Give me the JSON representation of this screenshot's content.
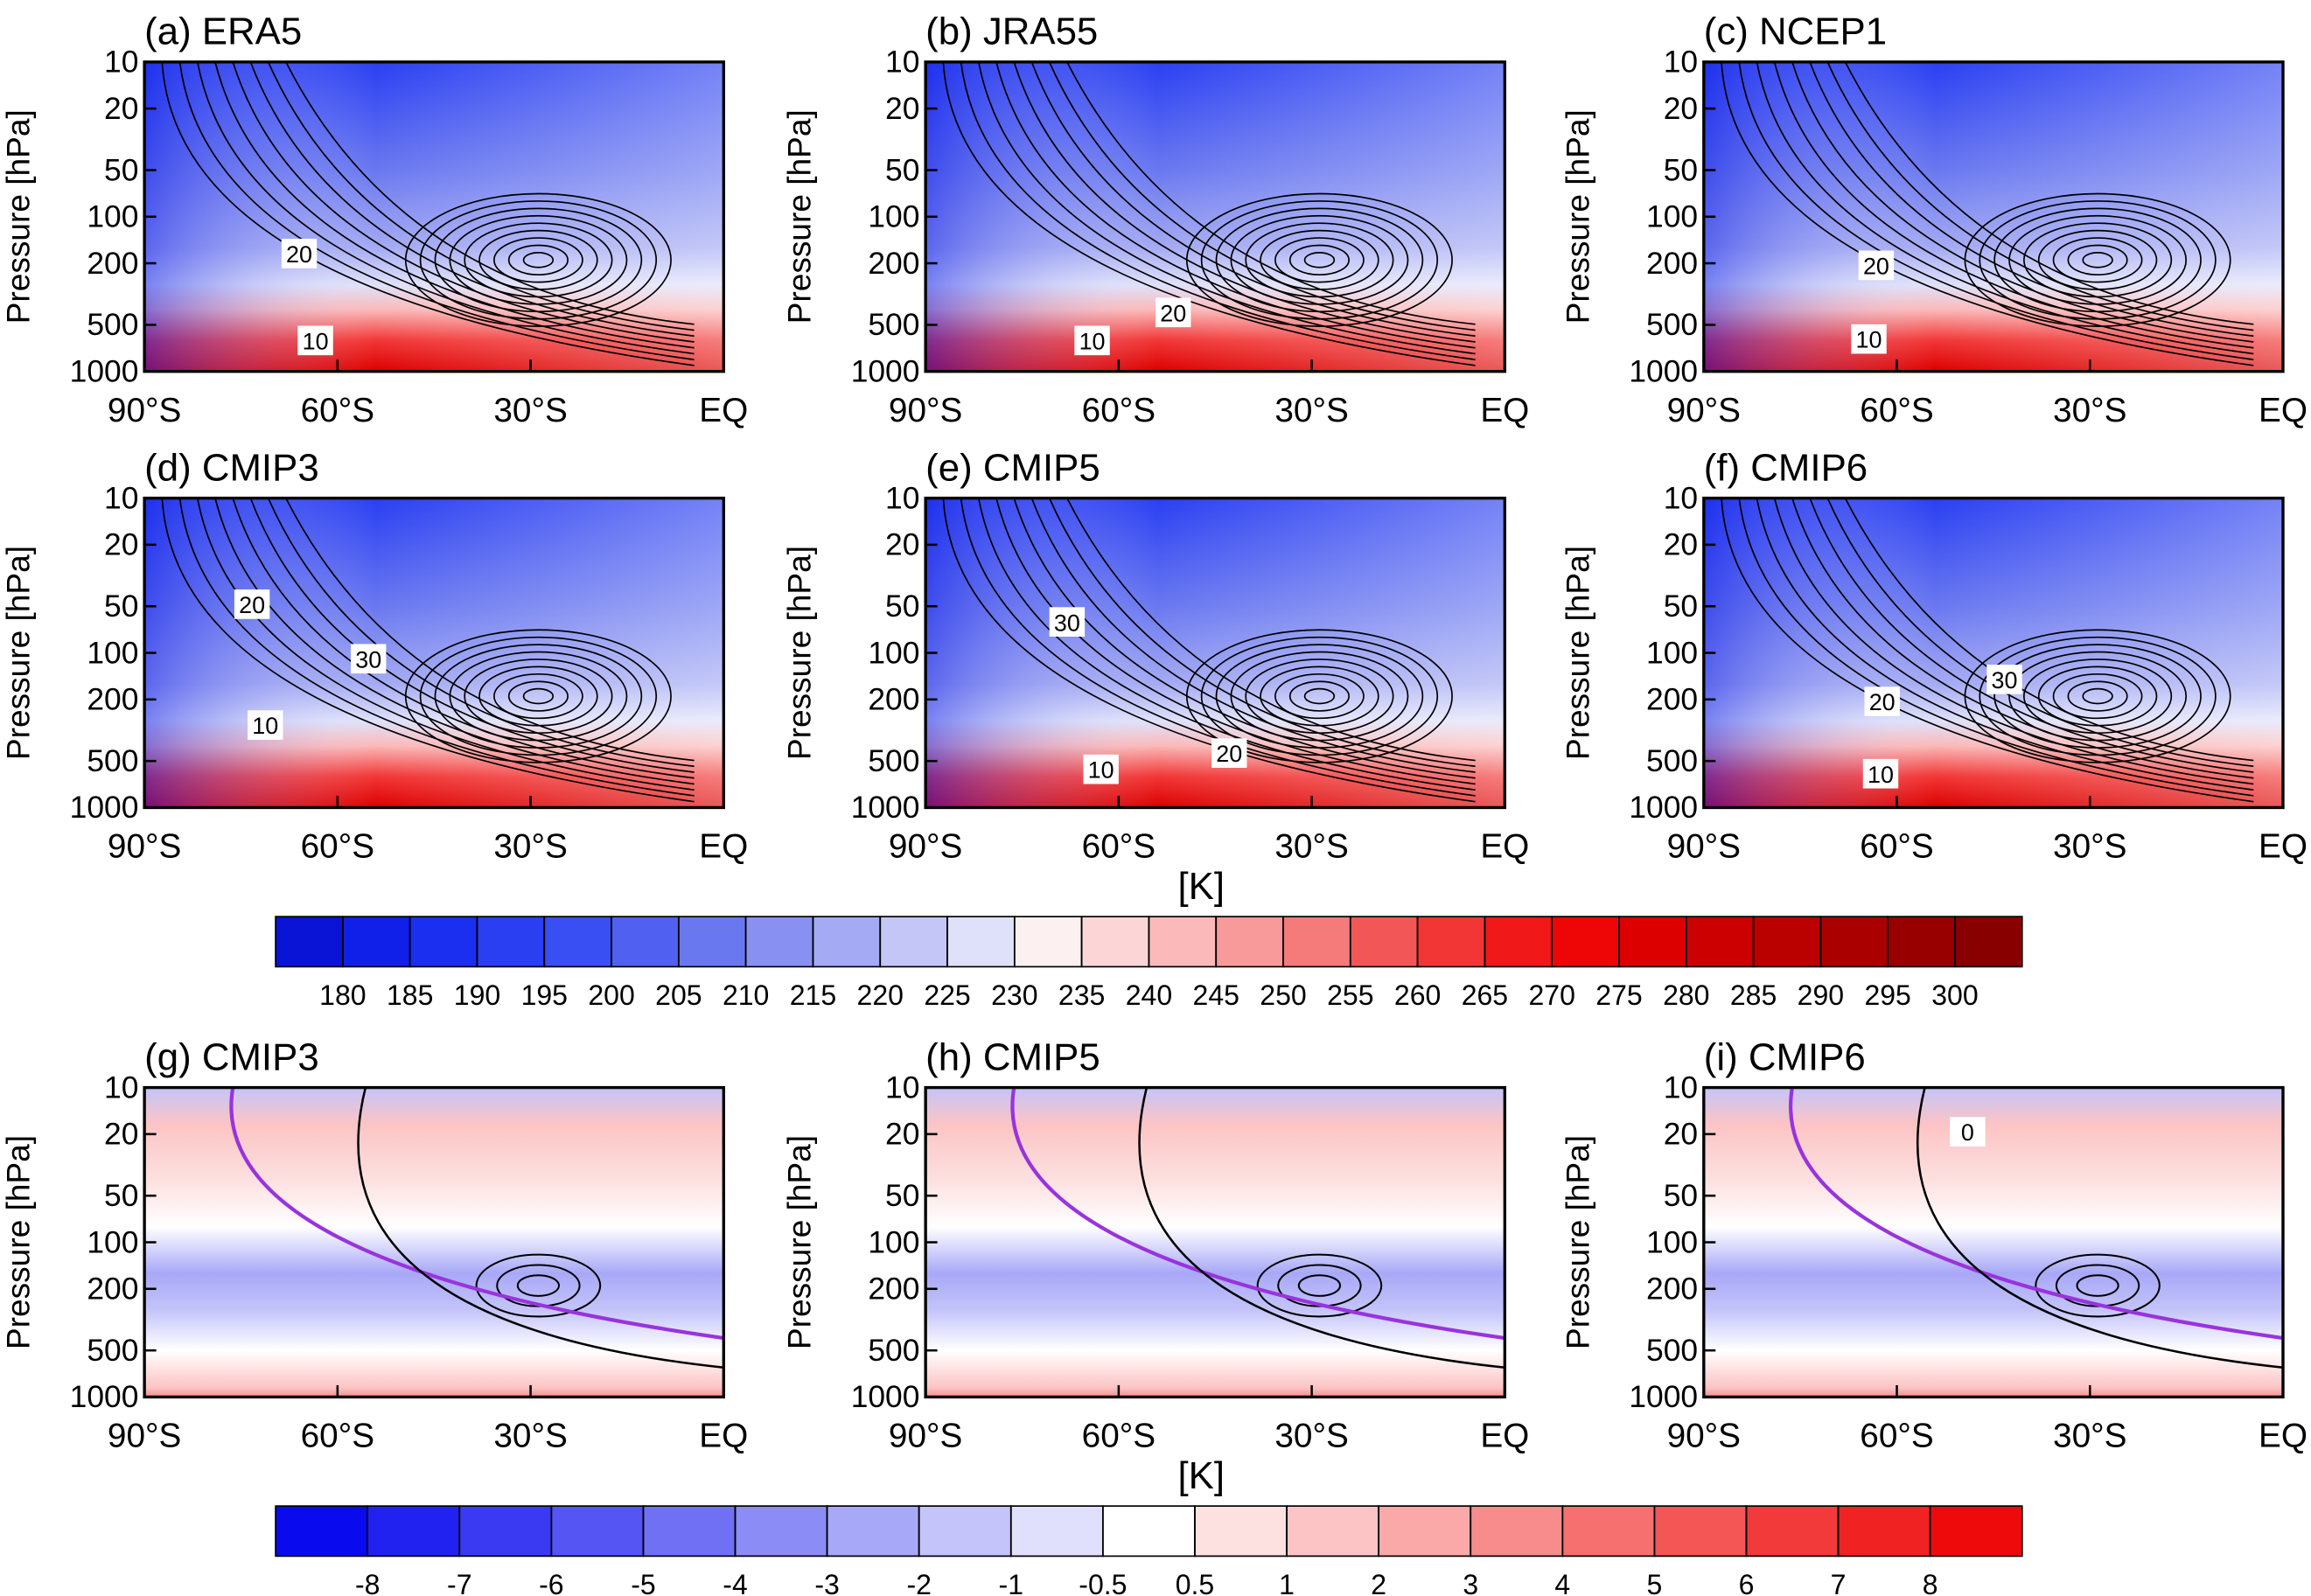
{
  "chart_data": [
    {
      "type": "contour",
      "title": "(a) ERA5",
      "ylabel": "Pressure [hPa]",
      "log_y": true,
      "xlim": [
        -90,
        0
      ],
      "ylim": [
        1000,
        10
      ],
      "xticks": [
        {
          "value": -90,
          "label": "90°S"
        },
        {
          "value": -60,
          "label": "60°S"
        },
        {
          "value": -30,
          "label": "30°S"
        },
        {
          "value": 0,
          "label": "EQ"
        }
      ],
      "yticks": [
        10,
        20,
        50,
        100,
        200,
        500,
        1000
      ],
      "contour_labels": [
        "20",
        "10"
      ]
    },
    {
      "type": "contour",
      "title": "(b) JRA55",
      "ylabel": "Pressure [hPa]",
      "log_y": true,
      "xlim": [
        -90,
        0
      ],
      "ylim": [
        1000,
        10
      ],
      "xticks": [
        {
          "value": -90,
          "label": "90°S"
        },
        {
          "value": -60,
          "label": "60°S"
        },
        {
          "value": -30,
          "label": "30°S"
        },
        {
          "value": 0,
          "label": "EQ"
        }
      ],
      "yticks": [
        10,
        20,
        50,
        100,
        200,
        500,
        1000
      ],
      "contour_labels": [
        "20",
        "10"
      ]
    },
    {
      "type": "contour",
      "title": "(c) NCEP1",
      "ylabel": "Pressure [hPa]",
      "log_y": true,
      "xlim": [
        -90,
        0
      ],
      "ylim": [
        1000,
        10
      ],
      "xticks": [
        {
          "value": -90,
          "label": "90°S"
        },
        {
          "value": -60,
          "label": "60°S"
        },
        {
          "value": -30,
          "label": "30°S"
        },
        {
          "value": 0,
          "label": "EQ"
        }
      ],
      "yticks": [
        10,
        20,
        50,
        100,
        200,
        500,
        1000
      ],
      "contour_labels": [
        "20",
        "10"
      ]
    },
    {
      "type": "contour",
      "title": "(d) CMIP3",
      "ylabel": "Pressure [hPa]",
      "log_y": true,
      "xlim": [
        -90,
        0
      ],
      "ylim": [
        1000,
        10
      ],
      "xticks": [
        {
          "value": -90,
          "label": "90°S"
        },
        {
          "value": -60,
          "label": "60°S"
        },
        {
          "value": -30,
          "label": "30°S"
        },
        {
          "value": 0,
          "label": "EQ"
        }
      ],
      "yticks": [
        10,
        20,
        50,
        100,
        200,
        500,
        1000
      ],
      "contour_labels": [
        "20",
        "30",
        "10"
      ]
    },
    {
      "type": "contour",
      "title": "(e) CMIP5",
      "ylabel": "Pressure [hPa]",
      "log_y": true,
      "xlim": [
        -90,
        0
      ],
      "ylim": [
        1000,
        10
      ],
      "xticks": [
        {
          "value": -90,
          "label": "90°S"
        },
        {
          "value": -60,
          "label": "60°S"
        },
        {
          "value": -30,
          "label": "30°S"
        },
        {
          "value": 0,
          "label": "EQ"
        }
      ],
      "yticks": [
        10,
        20,
        50,
        100,
        200,
        500,
        1000
      ],
      "contour_labels": [
        "30",
        "20",
        "10"
      ]
    },
    {
      "type": "contour",
      "title": "(f) CMIP6",
      "ylabel": "Pressure [hPa]",
      "log_y": true,
      "xlim": [
        -90,
        0
      ],
      "ylim": [
        1000,
        10
      ],
      "xticks": [
        {
          "value": -90,
          "label": "90°S"
        },
        {
          "value": -60,
          "label": "60°S"
        },
        {
          "value": -30,
          "label": "30°S"
        },
        {
          "value": 0,
          "label": "EQ"
        }
      ],
      "yticks": [
        10,
        20,
        50,
        100,
        200,
        500,
        1000
      ],
      "contour_labels": [
        "30",
        "20",
        "10"
      ]
    },
    {
      "type": "colorbar",
      "label": "[K]",
      "levels": [
        180,
        185,
        190,
        195,
        200,
        205,
        210,
        215,
        220,
        225,
        230,
        235,
        240,
        245,
        250,
        255,
        260,
        265,
        270,
        275,
        280,
        285,
        290,
        295,
        300
      ],
      "colors": [
        "#0a14d6",
        "#1020e8",
        "#1a2ff0",
        "#2a3ff2",
        "#3a4ff3",
        "#5060f0",
        "#6a78f0",
        "#8891f2",
        "#a4aaf3",
        "#c3c6f6",
        "#dfe1fa",
        "#fdf0f0",
        "#fcd6d6",
        "#fbb9b9",
        "#f89a9a",
        "#f57a7a",
        "#f35656",
        "#f23636",
        "#f01818",
        "#ee0606",
        "#dc0000",
        "#cc0000",
        "#bb0000",
        "#aa0000",
        "#980000",
        "#880000"
      ]
    },
    {
      "type": "contour",
      "title": "(g) CMIP3",
      "ylabel": "Pressure [hPa]",
      "log_y": true,
      "xlim": [
        -90,
        0
      ],
      "ylim": [
        1000,
        10
      ],
      "xticks": [
        {
          "value": -90,
          "label": "90°S"
        },
        {
          "value": -60,
          "label": "60°S"
        },
        {
          "value": -30,
          "label": "30°S"
        },
        {
          "value": 0,
          "label": "EQ"
        }
      ],
      "yticks": [
        10,
        20,
        50,
        100,
        200,
        500,
        1000
      ],
      "contour_labels": []
    },
    {
      "type": "contour",
      "title": "(h) CMIP5",
      "ylabel": "Pressure [hPa]",
      "log_y": true,
      "xlim": [
        -90,
        0
      ],
      "ylim": [
        1000,
        10
      ],
      "xticks": [
        {
          "value": -90,
          "label": "90°S"
        },
        {
          "value": -60,
          "label": "60°S"
        },
        {
          "value": -30,
          "label": "30°S"
        },
        {
          "value": 0,
          "label": "EQ"
        }
      ],
      "yticks": [
        10,
        20,
        50,
        100,
        200,
        500,
        1000
      ],
      "contour_labels": []
    },
    {
      "type": "contour",
      "title": "(i) CMIP6",
      "ylabel": "Pressure [hPa]",
      "log_y": true,
      "xlim": [
        -90,
        0
      ],
      "ylim": [
        1000,
        10
      ],
      "xticks": [
        {
          "value": -90,
          "label": "90°S"
        },
        {
          "value": -60,
          "label": "60°S"
        },
        {
          "value": -30,
          "label": "30°S"
        },
        {
          "value": 0,
          "label": "EQ"
        }
      ],
      "yticks": [
        10,
        20,
        50,
        100,
        200,
        500,
        1000
      ],
      "contour_labels": [
        "0"
      ]
    },
    {
      "type": "colorbar",
      "label": "[K]",
      "levels": [
        -8,
        -7,
        -6,
        -5,
        -4,
        -3,
        -2,
        -1,
        -0.5,
        0.5,
        1,
        2,
        3,
        4,
        5,
        6,
        7,
        8
      ],
      "colors": [
        "#0a0aee",
        "#2222f0",
        "#3a3af2",
        "#5555f3",
        "#7070f4",
        "#8c8cf6",
        "#a8a8f8",
        "#c4c4fa",
        "#e0e0fc",
        "#ffffff",
        "#fde0e0",
        "#fcc4c4",
        "#faa8a8",
        "#f88c8c",
        "#f67070",
        "#f45555",
        "#f33a3a",
        "#f12222",
        "#ee0a0a"
      ]
    }
  ]
}
